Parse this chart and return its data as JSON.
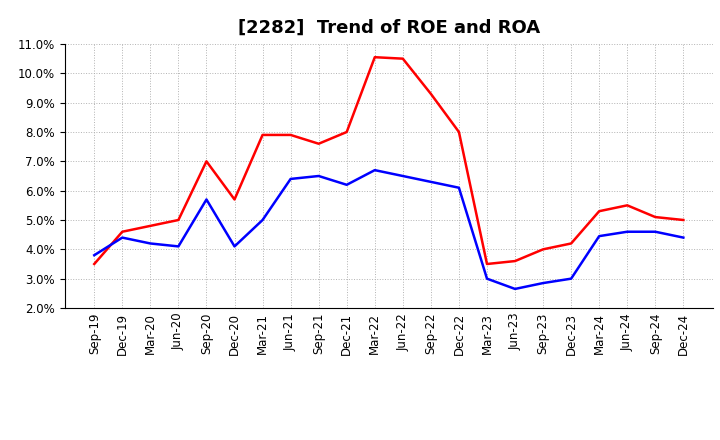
{
  "title": "[2282]  Trend of ROE and ROA",
  "xlabel_labels": [
    "Sep-19",
    "Dec-19",
    "Mar-20",
    "Jun-20",
    "Sep-20",
    "Dec-20",
    "Mar-21",
    "Jun-21",
    "Sep-21",
    "Dec-21",
    "Mar-22",
    "Jun-22",
    "Sep-22",
    "Dec-22",
    "Mar-23",
    "Jun-23",
    "Sep-23",
    "Dec-23",
    "Mar-24",
    "Jun-24",
    "Sep-24",
    "Dec-24"
  ],
  "ROE": [
    3.5,
    4.6,
    4.8,
    5.0,
    7.0,
    5.7,
    7.9,
    7.9,
    7.6,
    8.0,
    10.55,
    10.5,
    9.3,
    8.0,
    3.5,
    3.6,
    4.0,
    4.2,
    5.3,
    5.5,
    5.1,
    5.0
  ],
  "ROA": [
    3.8,
    4.4,
    4.2,
    4.1,
    5.7,
    4.1,
    5.0,
    6.4,
    6.5,
    6.2,
    6.7,
    6.5,
    6.3,
    6.1,
    3.0,
    2.65,
    2.85,
    3.0,
    4.45,
    4.6,
    4.6,
    4.4
  ],
  "ylim": [
    2.0,
    11.0
  ],
  "yticks": [
    2.0,
    3.0,
    4.0,
    5.0,
    6.0,
    7.0,
    8.0,
    9.0,
    10.0,
    11.0
  ],
  "roe_color": "#ff0000",
  "roa_color": "#0000ff",
  "background_color": "#ffffff",
  "grid_color": "#aaaaaa",
  "line_width": 1.8,
  "title_fontsize": 13,
  "legend_fontsize": 10,
  "tick_fontsize": 8.5
}
